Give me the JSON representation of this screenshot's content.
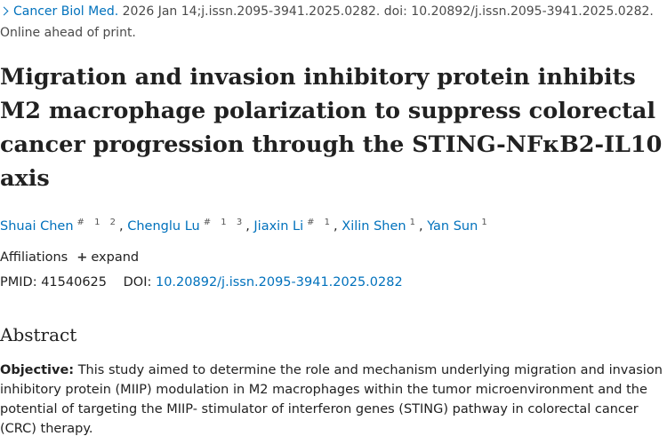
{
  "citation": {
    "journal": "Cancer Biol Med.",
    "date_doi_line": "2026 Jan 14;j.issn.2095-3941.2025.0282. doi: 10.20892/j.issn.2095-3941.2025.0282.",
    "status": "Online ahead of print."
  },
  "article": {
    "title": "Migration and invasion inhibitory protein inhibits M2 macrophage polarization to suppress colorectal cancer progression through the STING-NFκB2-IL10 axis"
  },
  "authors": [
    {
      "name": "Shuai Chen",
      "marks": "# 1 2"
    },
    {
      "name": "Chenglu Lu",
      "marks": "# 1 3"
    },
    {
      "name": "Jiaxin Li",
      "marks": "# 1"
    },
    {
      "name": "Xilin Shen",
      "marks": "1"
    },
    {
      "name": "Yan Sun",
      "marks": "1"
    }
  ],
  "affiliations": {
    "label": "Affiliations",
    "expand_label": "expand"
  },
  "identifiers": {
    "pmid_label": "PMID:",
    "pmid": "41540625",
    "doi_label": "DOI:",
    "doi": "10.20892/j.issn.2095-3941.2025.0282"
  },
  "abstract": {
    "heading": "Abstract",
    "objective_label": "Objective:",
    "objective_text": "This study aimed to determine the role and mechanism underlying migration and invasion inhibitory protein (MIIP) modulation in M2 macrophages within the tumor microenvironment and the potential of targeting the MIIP- stimulator of interferon genes (STING) pathway in colorectal cancer (CRC) therapy."
  },
  "colors": {
    "link": "#0071bc",
    "text": "#212121"
  },
  "icons": {
    "breadcrumb": "chevron-right-icon",
    "expand": "plus-icon"
  }
}
